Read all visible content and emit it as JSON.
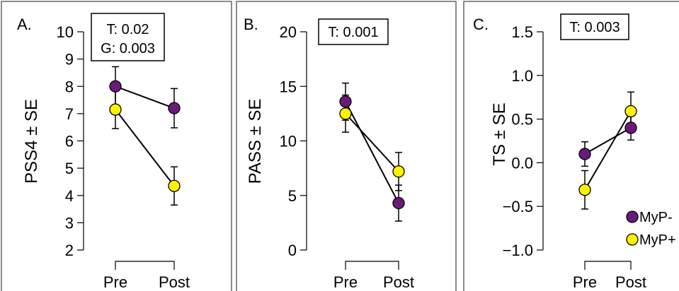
{
  "chart_data": [
    {
      "type": "line",
      "panel": "A.",
      "ylabel": "PSS4 ± SE",
      "ylim": [
        2,
        10
      ],
      "yticks": [
        "2",
        "3",
        "4",
        "5",
        "6",
        "7",
        "8",
        "9",
        "10"
      ],
      "categories": [
        "Pre",
        "Post"
      ],
      "annotation": [
        "T: 0.02",
        "G: 0.003"
      ],
      "series": [
        {
          "name": "MyP-",
          "color": "#6a1b7a",
          "values": [
            8.0,
            7.2
          ],
          "se": [
            0.72,
            0.72
          ]
        },
        {
          "name": "MyP+",
          "color": "#fff200",
          "values": [
            7.15,
            4.35
          ],
          "se": [
            0.7,
            0.7
          ]
        }
      ]
    },
    {
      "type": "line",
      "panel": "B.",
      "ylabel": "PASS ± SE",
      "ylim": [
        0,
        20
      ],
      "yticks": [
        "0",
        "5",
        "10",
        "15",
        "20"
      ],
      "categories": [
        "Pre",
        "Post"
      ],
      "annotation": [
        "T: 0.001"
      ],
      "series": [
        {
          "name": "MyP-",
          "color": "#6a1b7a",
          "values": [
            13.6,
            4.3
          ],
          "se": [
            1.7,
            1.65
          ]
        },
        {
          "name": "MyP+",
          "color": "#fff200",
          "values": [
            12.5,
            7.2
          ],
          "se": [
            1.7,
            1.75
          ]
        }
      ]
    },
    {
      "type": "line",
      "panel": "C.",
      "ylabel": "TS ± SE",
      "ylim": [
        -1.0,
        1.5
      ],
      "yticks": [
        "−1.0",
        "−0.5",
        "0.0",
        "0.5",
        "1.0",
        "1.5"
      ],
      "categories": [
        "Pre",
        "Post"
      ],
      "annotation": [
        "T: 0.003"
      ],
      "series": [
        {
          "name": "MyP-",
          "color": "#6a1b7a",
          "values": [
            0.1,
            0.4
          ],
          "se": [
            0.14,
            0.14
          ]
        },
        {
          "name": "MyP+",
          "color": "#fff200",
          "values": [
            -0.31,
            0.59
          ],
          "se": [
            0.22,
            0.22
          ]
        }
      ]
    }
  ],
  "legend": {
    "items": [
      {
        "label": "MyP-",
        "color": "#6a1b7a"
      },
      {
        "label": "MyP+",
        "color": "#fff200"
      }
    ]
  }
}
